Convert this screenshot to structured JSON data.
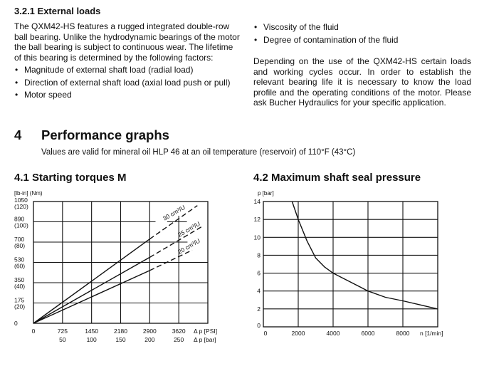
{
  "section_321": {
    "title": "3.2.1  External loads",
    "paragraph": "The QXM42-HS features a rugged integrated double-row ball bearing. Unlike the hydrodynamic bearings of the motor the ball bearing is subject to continuous wear. The lifetime of this bearing is determined by the following factors:",
    "factors_left": [
      "Magnitude of external shaft load (radial load)",
      "Direction of external shaft load (axial load push or pull)",
      "Motor speed"
    ],
    "factors_right": [
      "Viscosity of the fluid",
      "Degree of contamination of the fluid"
    ],
    "paragraph2": "Depending on the use of the QXM42-HS certain loads and working cycles occur. In order to establish the relevant bearing life it is necessary to know the load profile and the operating conditions of the motor. Please ask Bucher Hydraulics for your specific application."
  },
  "section_4": {
    "number": "4",
    "title": "Performance graphs",
    "note": "Values are valid for mineral oil HLP 46 at an oil temperature (reservoir) of 110°F (43°C)"
  },
  "section_41": {
    "title": "4.1   Starting torques M"
  },
  "section_42": {
    "title": "4.2   Maximum shaft seal pressure"
  },
  "chart_data": [
    {
      "type": "line",
      "title": "Starting torques M",
      "ylabel": "[lb-in] (Nm)",
      "xlabel_psi": "Δ p [PSI]",
      "xlabel_bar": "Δ p [bar]",
      "xlim": [
        0,
        300
      ],
      "ylim": [
        0,
        120
      ],
      "x_ticks_bar": [
        0,
        50,
        100,
        150,
        200,
        250
      ],
      "x_tick_labels_psi": [
        "0",
        "725",
        "1450",
        "2180",
        "2900",
        "3620"
      ],
      "x_tick_labels_bar": [
        "",
        "50",
        "100",
        "150",
        "200",
        "250"
      ],
      "y_ticks_nm": [
        0,
        20,
        40,
        60,
        80,
        100,
        120
      ],
      "y_tick_labels_lbin": [
        "0",
        "175",
        "350",
        "530",
        "700",
        "890",
        "1050"
      ],
      "y_tick_labels_nm": [
        "",
        "(20)",
        "(40)",
        "(60)",
        "(80)",
        "(100)",
        "(120)"
      ],
      "grid": true,
      "series": [
        {
          "name": "30 cm³/U",
          "label": "30  cm³/U",
          "solid": [
            [
              0,
              0
            ],
            [
              200,
              83
            ]
          ],
          "dashed": [
            [
              200,
              83
            ],
            [
              282,
              116
            ]
          ]
        },
        {
          "name": "25 cm³/U",
          "label": "25  cm³/U",
          "solid": [
            [
              0,
              0
            ],
            [
              200,
              65
            ]
          ],
          "dashed": [
            [
              200,
              65
            ],
            [
              289,
              95
            ]
          ]
        },
        {
          "name": "20 cm³/U",
          "label": "20  cm³/U",
          "solid": [
            [
              0,
              0
            ],
            [
              200,
              52
            ]
          ],
          "dashed": [
            [
              200,
              52
            ],
            [
              273,
              72
            ]
          ]
        }
      ]
    },
    {
      "type": "line",
      "title": "Maximum shaft seal pressure",
      "ylabel": "p [bar]",
      "xlabel": "n [1/min]",
      "xlim": [
        0,
        10000
      ],
      "ylim": [
        0,
        14
      ],
      "x_ticks": [
        0,
        2000,
        4000,
        6000,
        8000
      ],
      "y_ticks": [
        0,
        2,
        4,
        6,
        8,
        10,
        12,
        14
      ],
      "grid": true,
      "series": [
        {
          "name": "max seal pressure",
          "points": [
            [
              1650,
              14
            ],
            [
              2000,
              12
            ],
            [
              2500,
              9.6
            ],
            [
              3000,
              7.7
            ],
            [
              3500,
              6.7
            ],
            [
              4000,
              6
            ],
            [
              5000,
              5
            ],
            [
              6000,
              4
            ],
            [
              7000,
              3.3
            ],
            [
              8000,
              2.9
            ],
            [
              9000,
              2.45
            ],
            [
              10000,
              2
            ]
          ]
        }
      ]
    }
  ]
}
